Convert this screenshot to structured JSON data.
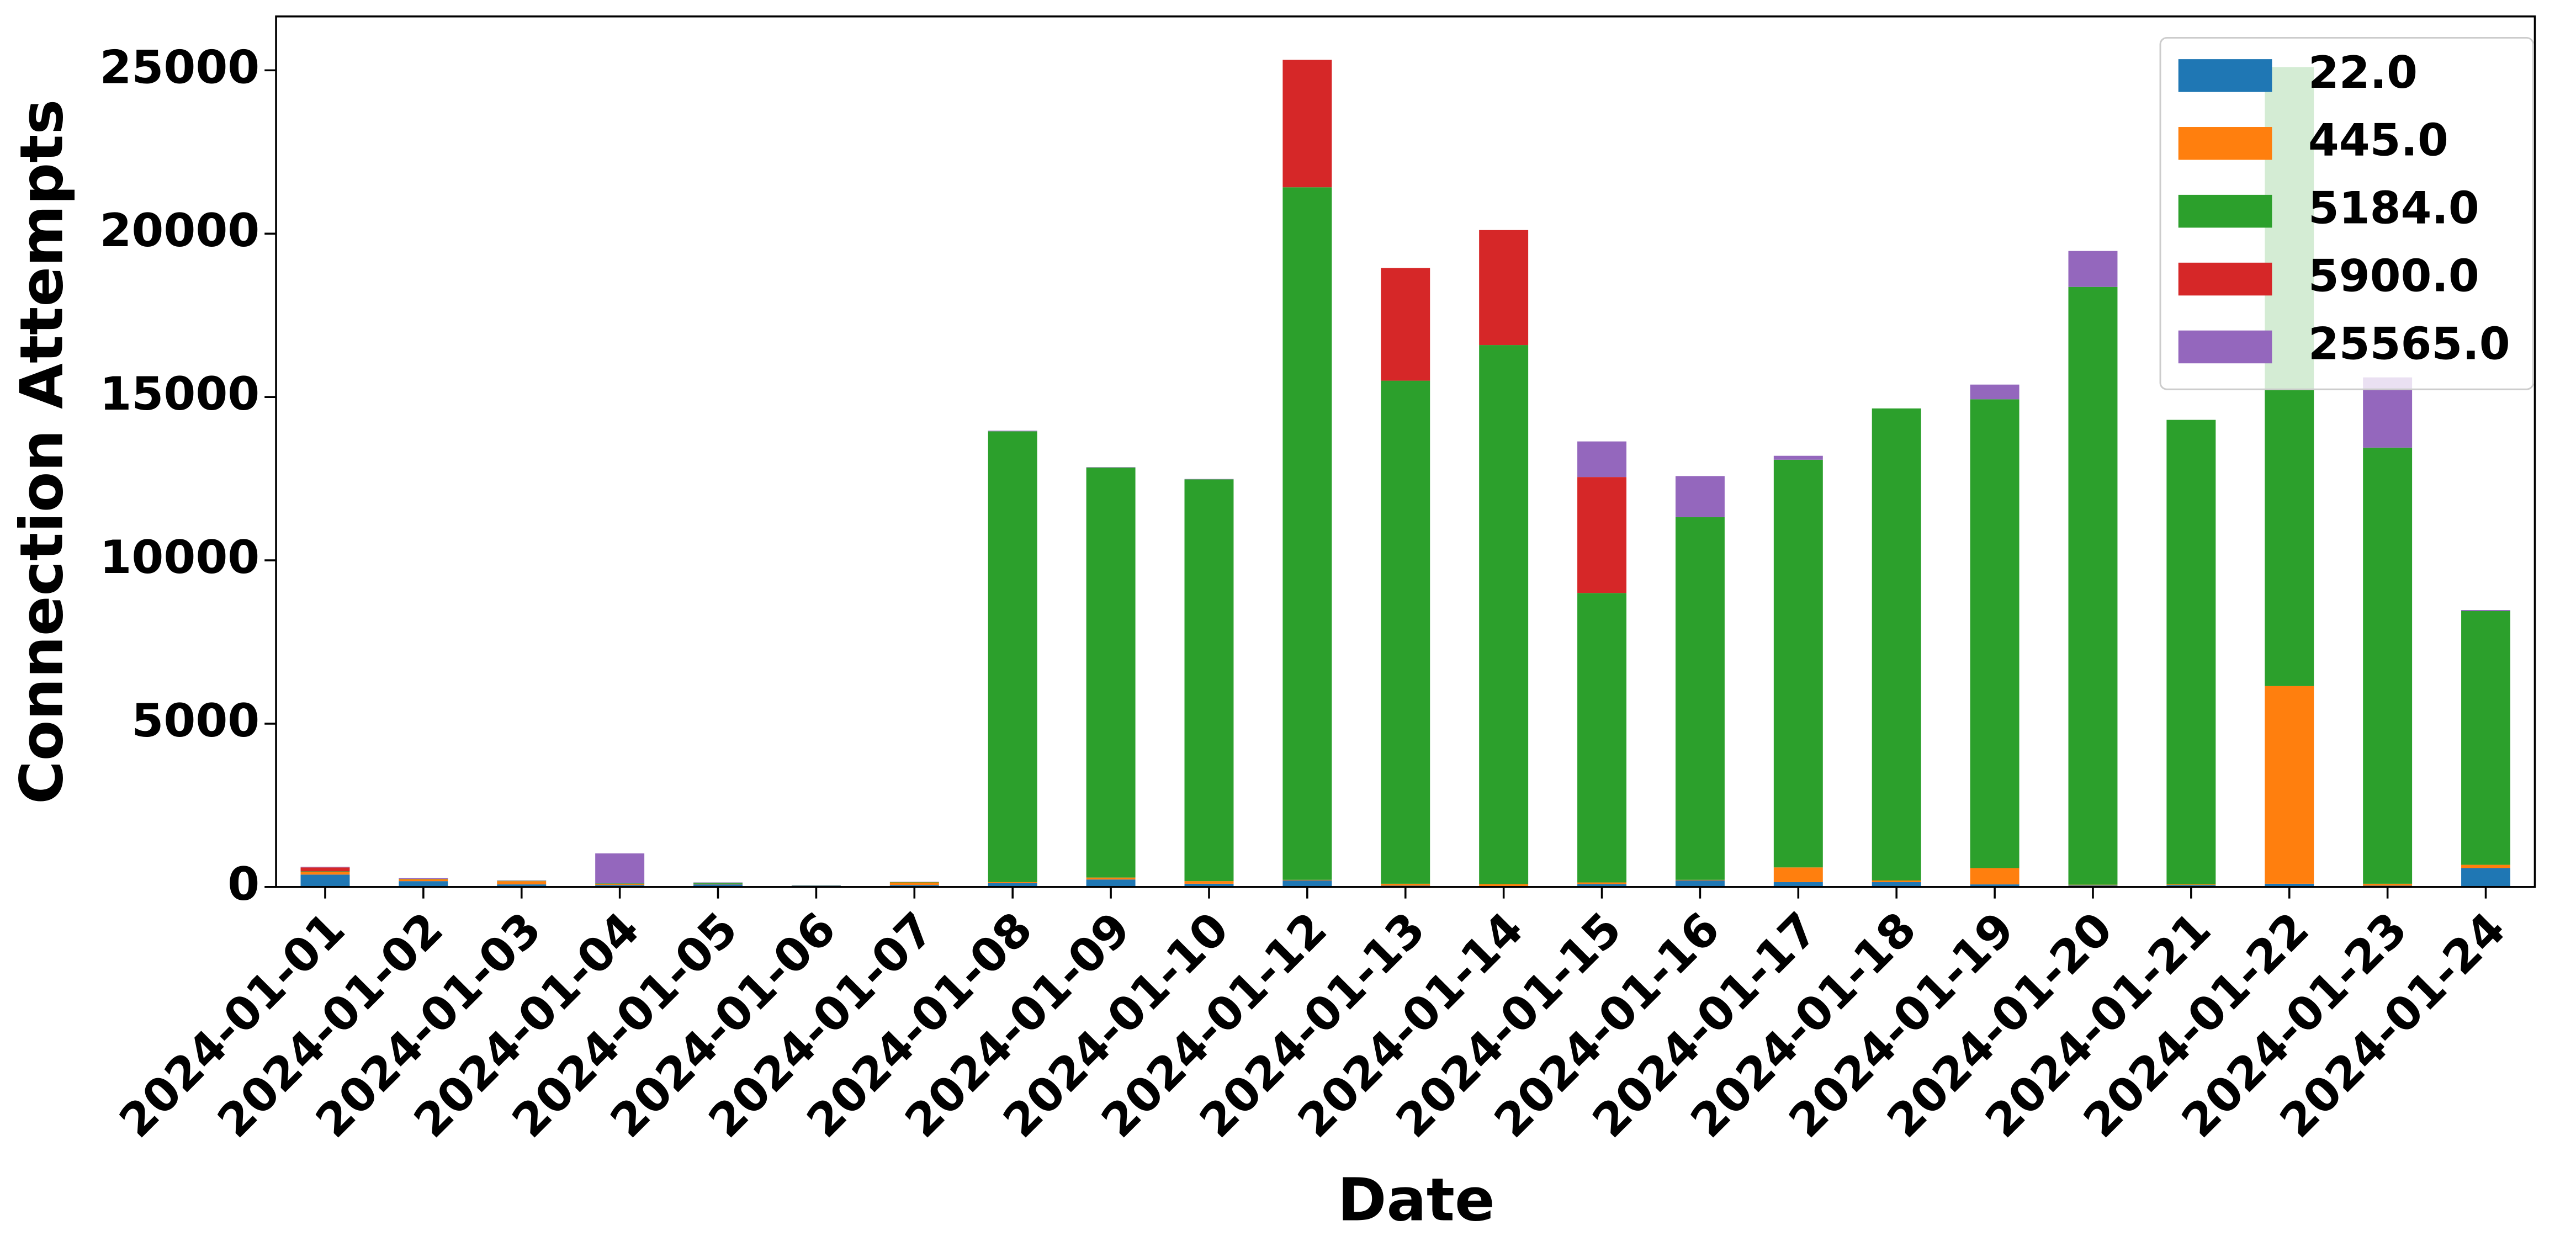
{
  "chart_data": {
    "type": "stacked_bar",
    "x_label": "Date",
    "y_label": "Connection Attempts",
    "categories": [
      "2024-01-01",
      "2024-01-02",
      "2024-01-03",
      "2024-01-04",
      "2024-01-05",
      "2024-01-06",
      "2024-01-07",
      "2024-01-08",
      "2024-01-09",
      "2024-01-10",
      "2024-01-12",
      "2024-01-13",
      "2024-01-14",
      "2024-01-15",
      "2024-01-16",
      "2024-01-17",
      "2024-01-18",
      "2024-01-19",
      "2024-01-20",
      "2024-01-21",
      "2024-01-22",
      "2024-01-23",
      "2024-01-24"
    ],
    "series": [
      {
        "name": "22.0",
        "color": "#1f77b4",
        "values": [
          380,
          180,
          80,
          60,
          80,
          40,
          60,
          120,
          230,
          100,
          200,
          40,
          30,
          90,
          200,
          150,
          150,
          80,
          50,
          60,
          100,
          40,
          580
        ]
      },
      {
        "name": "445.0",
        "color": "#ff7f0e",
        "values": [
          80,
          60,
          100,
          30,
          20,
          5,
          80,
          30,
          60,
          80,
          20,
          60,
          60,
          50,
          20,
          450,
          50,
          500,
          20,
          20,
          6050,
          60,
          100
        ]
      },
      {
        "name": "5184.0",
        "color": "#2ca02c",
        "values": [
          20,
          10,
          10,
          20,
          30,
          5,
          10,
          13800,
          12550,
          12300,
          21200,
          15400,
          16500,
          8860,
          11100,
          12480,
          14450,
          14350,
          18300,
          14220,
          18950,
          13350,
          7770
        ]
      },
      {
        "name": "5900.0",
        "color": "#d62728",
        "values": [
          120,
          0,
          0,
          0,
          0,
          0,
          0,
          0,
          0,
          0,
          3900,
          3450,
          3520,
          3550,
          0,
          0,
          0,
          0,
          0,
          0,
          0,
          0,
          0
        ]
      },
      {
        "name": "25565.0",
        "color": "#9467bd",
        "values": [
          20,
          20,
          10,
          920,
          10,
          5,
          10,
          20,
          10,
          10,
          0,
          0,
          0,
          1090,
          1260,
          120,
          0,
          450,
          1100,
          0,
          0,
          2150,
          30
        ]
      }
    ],
    "ylim": [
      0,
      26650
    ],
    "yticks": [
      0,
      5000,
      10000,
      15000,
      20000,
      25000
    ],
    "legend": "upper right"
  }
}
